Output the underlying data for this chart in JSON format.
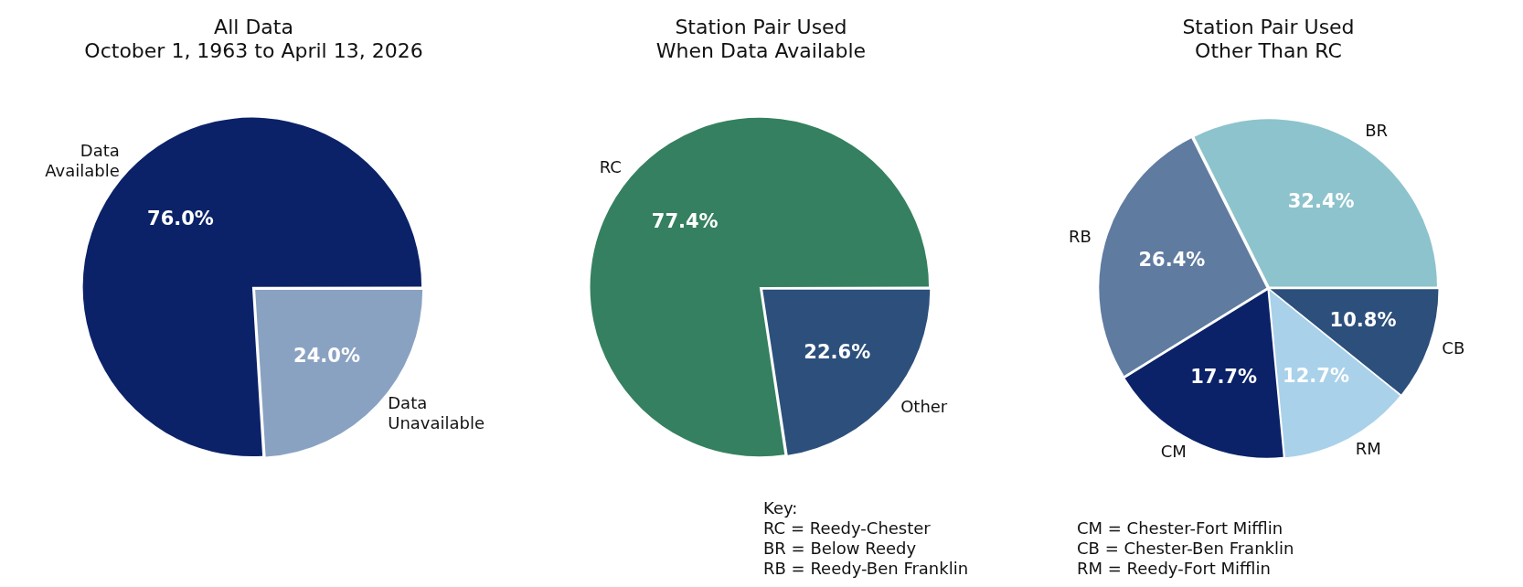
{
  "chart_data": [
    {
      "type": "pie",
      "title": "All Data",
      "subtitle": "October 1, 1963 to April 13, 2026",
      "categories": [
        "Data\nAvailable",
        "Data\nUnavailable"
      ],
      "values": [
        76.0,
        24.0
      ],
      "colors": [
        "#0b2269",
        "#8aa2c2"
      ],
      "value_labels": [
        "76.0%",
        "24.0%"
      ],
      "legend": false
    },
    {
      "type": "pie",
      "title": "Station Pair Used\nWhen Data Available",
      "categories": [
        "RC",
        "Other"
      ],
      "values": [
        77.4,
        22.6
      ],
      "colors": [
        "#358060",
        "#2c4f7c"
      ],
      "value_labels": [
        "77.4%",
        "22.6%"
      ],
      "legend": false,
      "annotations": [
        "Key:\nRC = Reedy-Chester\nBR = Below Reedy\nRB = Reedy-Ben Franklin"
      ]
    },
    {
      "type": "pie",
      "title": "Station Pair Used\nOther Than RC",
      "categories": [
        "BR",
        "RB",
        "CM",
        "RM",
        "CB"
      ],
      "values": [
        32.4,
        26.4,
        17.7,
        12.7,
        10.8
      ],
      "colors": [
        "#8dc3cc",
        "#5f7ba0",
        "#0b2269",
        "#a9d1ea",
        "#2c4f7c"
      ],
      "value_labels": [
        "32.4%",
        "26.4%",
        "17.7%",
        "12.7%",
        "10.8%"
      ],
      "legend": false,
      "annotations": [
        "CM = Chester-Fort Mifflin\nCB = Chester-Ben Franklin\nRM = Reedy-Fort Mifflin"
      ]
    }
  ]
}
